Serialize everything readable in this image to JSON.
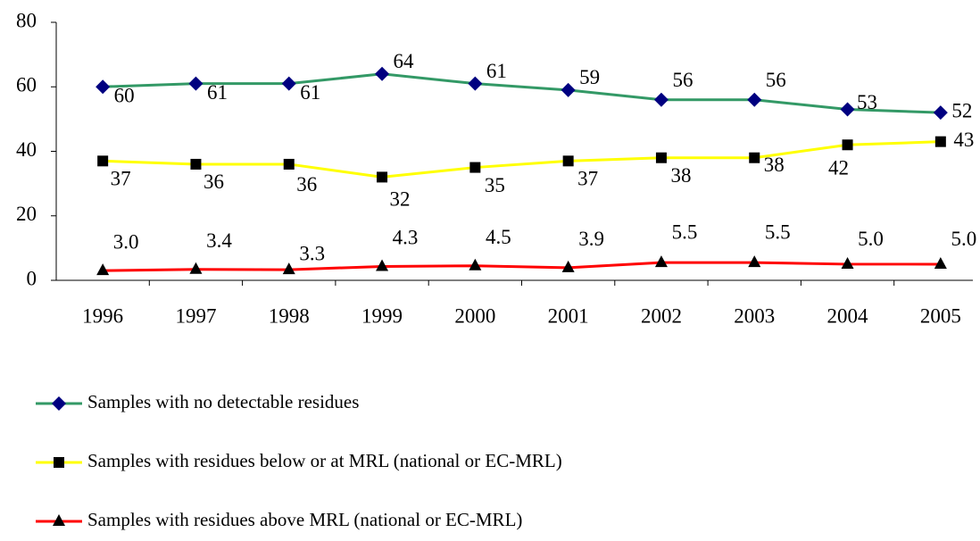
{
  "chart_data": {
    "type": "line",
    "categories": [
      "1996",
      "1997",
      "1998",
      "1999",
      "2000",
      "2001",
      "2002",
      "2003",
      "2004",
      "2005"
    ],
    "series": [
      {
        "name": "Samples with no detectable residues",
        "color": "#339966",
        "marker": "diamond",
        "marker_color": "#000080",
        "values": [
          60,
          61,
          61,
          64,
          61,
          59,
          56,
          56,
          53,
          52
        ]
      },
      {
        "name": "Samples with residues below or at MRL (national or EC-MRL)",
        "color": "#ffff00",
        "marker": "square",
        "marker_color": "#000000",
        "values": [
          37,
          36,
          36,
          32,
          35,
          37,
          38,
          38,
          42,
          43
        ]
      },
      {
        "name": "Samples with residues above MRL (national or EC-MRL)",
        "color": "#ff0000",
        "marker": "triangle",
        "marker_color": "#000000",
        "values": [
          3.0,
          3.4,
          3.3,
          4.3,
          4.5,
          3.9,
          5.5,
          5.5,
          5.0,
          5.0
        ],
        "value_labels": [
          "3.0",
          "3.4",
          "3.3",
          "4.3",
          "4.5",
          "3.9",
          "5.5",
          "5.5",
          "5.0",
          "5.0"
        ]
      }
    ],
    "ylim": [
      0,
      80
    ],
    "yticks": [
      0,
      20,
      40,
      60,
      80
    ],
    "grid": false,
    "legend": "bottom"
  }
}
